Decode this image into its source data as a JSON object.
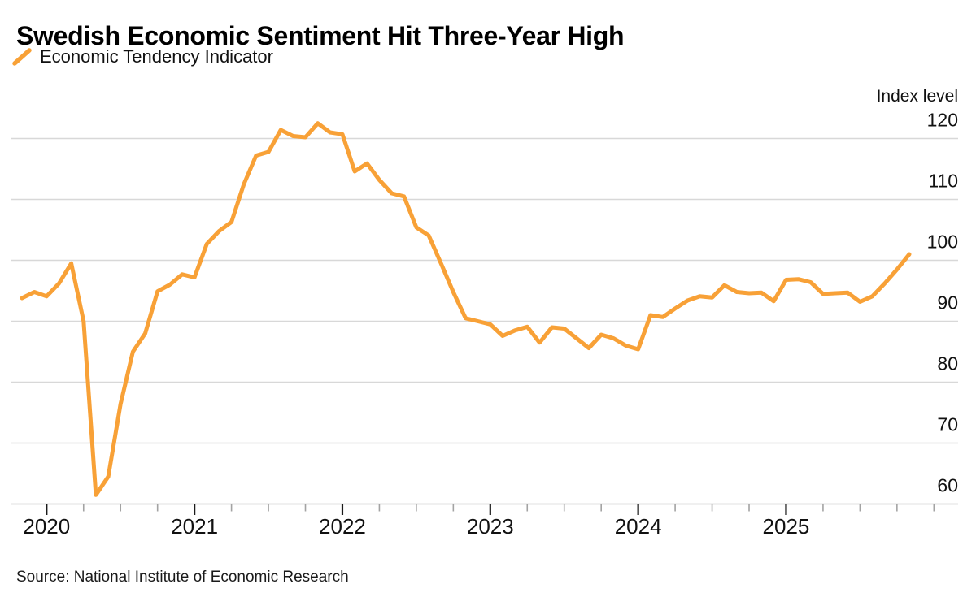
{
  "title": "Swedish Economic Sentiment Hit Three-Year High",
  "legend": {
    "marker_icon": "line-slash-icon",
    "label": "Economic Tendency Indicator"
  },
  "y_axis_title": "Index level",
  "source": "Source: National Institute of Economic Research",
  "colors": {
    "line": "#F8A137",
    "grid": "#D8D8D8",
    "axis_line": "#C6C6C6",
    "tick_major": "#1A1A1A",
    "tick_minor": "#A3A3A3",
    "text": "#111111",
    "background": "#FFFFFF"
  },
  "chart_data": {
    "type": "line",
    "title": "Swedish Economic Sentiment Hit Three-Year High",
    "series_name": "Economic Tendency Indicator",
    "ylabel": "Index level",
    "xlabel": "",
    "grid": "horizontal",
    "legend_position": "top-left",
    "ylim": [
      56,
      124
    ],
    "yticks": [
      60,
      70,
      80,
      90,
      100,
      110,
      120
    ],
    "xticks_years": [
      "2020",
      "2021",
      "2022",
      "2023",
      "2024",
      "2025"
    ],
    "x_axis_extension": [
      "2025-12",
      "2026-01"
    ],
    "x_monthly": [
      "2019-11",
      "2019-12",
      "2020-01",
      "2020-02",
      "2020-03",
      "2020-04",
      "2020-05",
      "2020-06",
      "2020-07",
      "2020-08",
      "2020-09",
      "2020-10",
      "2020-11",
      "2020-12",
      "2021-01",
      "2021-02",
      "2021-03",
      "2021-04",
      "2021-05",
      "2021-06",
      "2021-07",
      "2021-08",
      "2021-09",
      "2021-10",
      "2021-11",
      "2021-12",
      "2022-01",
      "2022-02",
      "2022-03",
      "2022-04",
      "2022-05",
      "2022-06",
      "2022-07",
      "2022-08",
      "2022-09",
      "2022-10",
      "2022-11",
      "2022-12",
      "2023-01",
      "2023-02",
      "2023-03",
      "2023-04",
      "2023-05",
      "2023-06",
      "2023-07",
      "2023-08",
      "2023-09",
      "2023-10",
      "2023-11",
      "2023-12",
      "2024-01",
      "2024-02",
      "2024-03",
      "2024-04",
      "2024-05",
      "2024-06",
      "2024-07",
      "2024-08",
      "2024-09",
      "2024-10",
      "2024-11",
      "2024-12",
      "2025-01",
      "2025-02",
      "2025-03",
      "2025-04",
      "2025-05",
      "2025-06",
      "2025-07",
      "2025-08",
      "2025-09",
      "2025-10",
      "2025-11"
    ],
    "values": [
      93.8,
      94.8,
      94.1,
      96.2,
      99.5,
      90.0,
      61.5,
      64.5,
      76.4,
      85.0,
      88.0,
      94.9,
      96.0,
      97.7,
      97.2,
      102.7,
      104.8,
      106.3,
      112.5,
      117.2,
      117.8,
      121.4,
      120.4,
      120.2,
      122.5,
      121.0,
      120.7,
      114.6,
      115.9,
      113.2,
      111.0,
      110.5,
      105.4,
      104.1,
      99.5,
      94.8,
      90.5,
      90.0,
      89.5,
      87.6,
      88.5,
      89.1,
      86.5,
      89.0,
      88.8,
      87.2,
      85.6,
      87.8,
      87.2,
      86.0,
      85.4,
      91.0,
      90.7,
      92.1,
      93.4,
      94.1,
      93.9,
      95.9,
      94.8,
      94.6,
      94.7,
      93.3,
      96.8,
      96.9,
      96.4,
      94.5,
      94.6,
      94.7,
      93.2,
      94.1,
      96.2,
      98.5,
      101.0
    ]
  }
}
